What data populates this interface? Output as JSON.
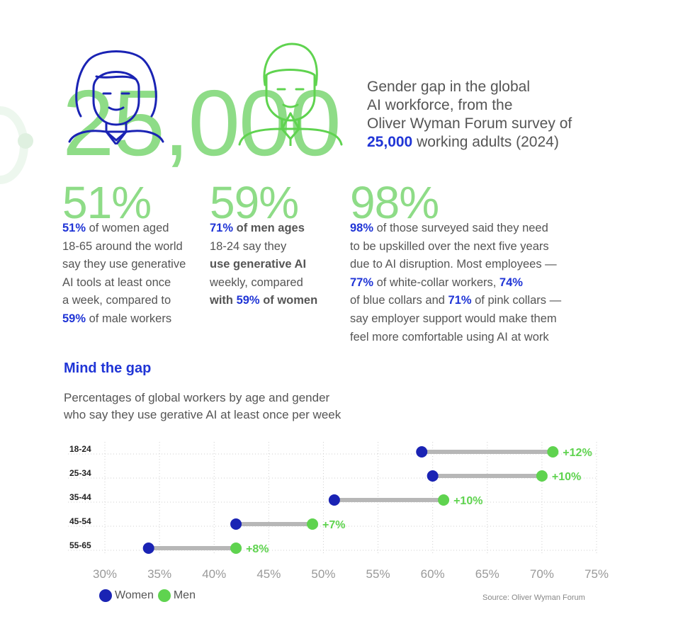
{
  "headline": {
    "line1": "Gender gap in the global",
    "line2": "AI workforce, from the",
    "line3": "Oliver Wyman Forum survey of",
    "highlight": "25,000",
    "line4_rest": " working adults (2024)"
  },
  "big_number": "25,000",
  "colors": {
    "women": "#1a23b4",
    "men": "#5fd34f",
    "accent_text": "#2035d6",
    "big_text": "#8edc87",
    "connector": "#b7b7b7"
  },
  "icons": [
    "woman-outline-icon",
    "man-outline-icon"
  ],
  "stats": [
    {
      "pct": "51%",
      "lines": [
        {
          "b": "51%",
          "t": " of women aged"
        },
        {
          "t": "18-65 around the world"
        },
        {
          "t": "say they use generative"
        },
        {
          "t": "AI tools at least once"
        },
        {
          "t": "a week, compared to"
        },
        {
          "b": "59%",
          "t": " of male workers"
        }
      ]
    },
    {
      "pct": "59%",
      "lines": [
        {
          "b": "71%",
          "t": " of men ages"
        },
        {
          "t": "18-24 say they"
        },
        {
          "bd": "use generative AI"
        },
        {
          "t": "weekly, compared"
        },
        {
          "bd": "with ",
          "b": "59%",
          "bd2": " of women"
        }
      ]
    },
    {
      "pct": "98%",
      "lines": [
        {
          "b": "98%",
          "t": " of those surveyed said they need"
        },
        {
          "t": "to be upskilled over the next five years"
        },
        {
          "t": "due to AI disruption. Most employees —"
        },
        {
          "b": "77%",
          "t": " of white-collar workers, ",
          "b2": "74%"
        },
        {
          "t": "of blue collars and ",
          "b": "71%",
          "t2": " of pink collars —"
        },
        {
          "t": "say employer support would make them"
        },
        {
          "t": "feel more comfortable using AI at work"
        }
      ]
    }
  ],
  "section_title": "Mind the gap",
  "subtitle_line1": "Percentages of global workers by age and gender",
  "subtitle_line2": "who say they use gerative AI at least once per week",
  "chart_data": {
    "type": "dumbbell",
    "categories": [
      "18-24",
      "25-34",
      "35-44",
      "45-54",
      "55-65"
    ],
    "series": [
      {
        "name": "Women",
        "values": [
          59,
          60,
          51,
          42,
          34
        ]
      },
      {
        "name": "Men",
        "values": [
          71,
          70,
          61,
          49,
          42
        ]
      }
    ],
    "gap_labels": [
      "+12%",
      "+10%",
      "+10%",
      "+7%",
      "+8%"
    ],
    "x_ticks": [
      "30%",
      "35%",
      "40%",
      "45%",
      "50%",
      "55%",
      "60%",
      "65%",
      "70%",
      "75%"
    ],
    "xlim": [
      30,
      75
    ],
    "grid": true,
    "legend_position": "bottom-left"
  },
  "legend": {
    "women": "Women",
    "men": "Men"
  },
  "source": "Source: Oliver Wyman Forum"
}
